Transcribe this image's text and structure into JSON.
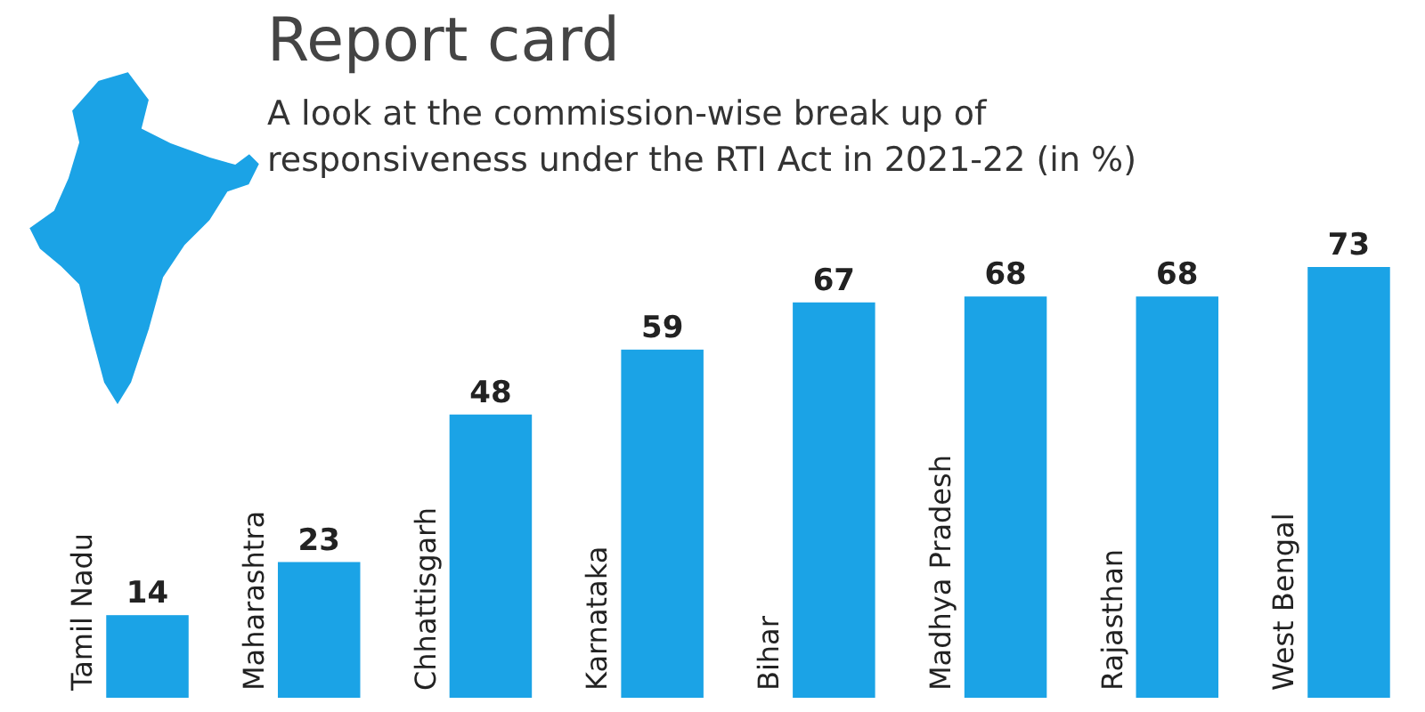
{
  "chart_data": {
    "type": "bar",
    "title": "Report card",
    "subtitle": "A look at the commission-wise break up of responsiveness under the RTI Act in 2021-22 (in %)",
    "categories": [
      "Tamil Nadu",
      "Maharashtra",
      "Chhattisgarh",
      "Karnataka",
      "Bihar",
      "Madhya Pradesh",
      "Rajasthan",
      "West Bengal"
    ],
    "values": [
      14,
      23,
      48,
      59,
      67,
      68,
      68,
      73
    ],
    "color": "#1ba3e6",
    "data_labels": true
  }
}
